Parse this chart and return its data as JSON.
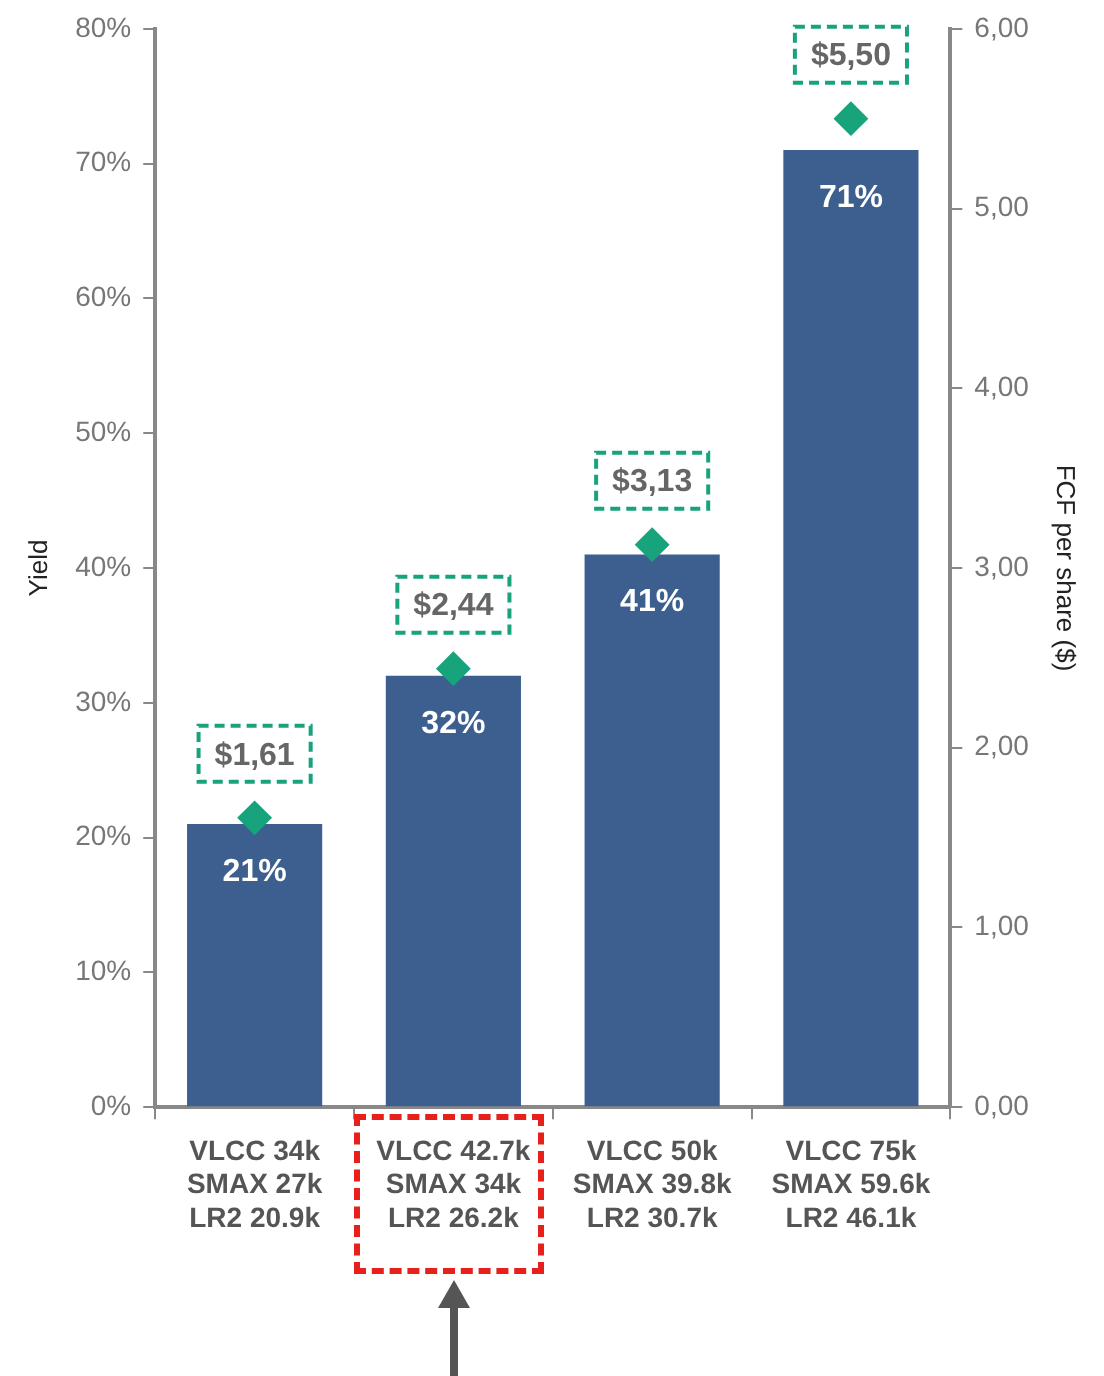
{
  "chart_data": {
    "type": "bar",
    "ylabel": "Yield",
    "y2label": "FCF per share ($)",
    "categories": [
      "VLCC 34k\nSMAX 27k\nLR2 20.9k",
      "VLCC 42.7k\nSMAX 34k\nLR2 26.2k",
      "VLCC 50k\nSMAX 39.8k\nLR2 30.7k",
      "VLCC 75k\nSMAX 59.6k\nLR2 46.1k"
    ],
    "series": [
      {
        "color": "#3d5f8f",
        "values": [
          21,
          32,
          41,
          71
        ],
        "value_labels": [
          "21%",
          "32%",
          "41%",
          "71%"
        ]
      },
      {
        "type": "scatter",
        "axis": "y2",
        "color": "#17a37c",
        "x": [
          "VLCC 34k\nSMAX 27k\nLR2 20.9k",
          "VLCC 42.7k\nSMAX 34k\nLR2 26.2k",
          "VLCC 50k\nSMAX 39.8k\nLR2 30.7k",
          "VLCC 75k\nSMAX 59.6k\nLR2 46.1k"
        ],
        "values": [
          1.61,
          2.44,
          3.13,
          5.5
        ],
        "value_labels": [
          "$1,61",
          "$2,44",
          "$3,13",
          "$5,50"
        ]
      }
    ],
    "ylim": [
      0,
      80
    ],
    "yticks": [
      {
        "value": 0,
        "label": "0%"
      },
      {
        "value": 10,
        "label": "10%"
      },
      {
        "value": 20,
        "label": "20%"
      },
      {
        "value": 30,
        "label": "30%"
      },
      {
        "value": 40,
        "label": "40%"
      },
      {
        "value": 50,
        "label": "50%"
      },
      {
        "value": 60,
        "label": "60%"
      },
      {
        "value": 70,
        "label": "70%"
      },
      {
        "value": 80,
        "label": "80%"
      }
    ],
    "y2lim": [
      0,
      6
    ],
    "y2ticks": [
      {
        "value": 0,
        "label": "0,00"
      },
      {
        "value": 1,
        "label": "1,00"
      },
      {
        "value": 2,
        "label": "2,00"
      },
      {
        "value": 3,
        "label": "3,00"
      },
      {
        "value": 4,
        "label": "4,00"
      },
      {
        "value": 5,
        "label": "5,00"
      },
      {
        "value": 6,
        "label": "6,00"
      }
    ],
    "grid": false,
    "legend": false,
    "marker": "diamond"
  }
}
